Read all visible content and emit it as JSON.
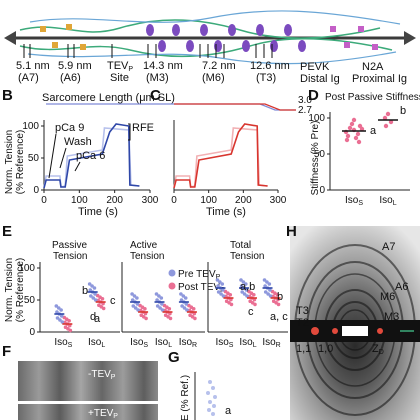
{
  "panel_letters": [
    "B",
    "C",
    "D",
    "E",
    "F",
    "G",
    "H"
  ],
  "panel_a": {
    "annotations": [
      {
        "main": "5.1 nm",
        "sub": "(A7)"
      },
      {
        "main": "5.9 nm",
        "sub": "(A6)"
      },
      {
        "main": "TEV",
        "sub_p": "P",
        "line2": "Site"
      },
      {
        "main": "14.3 nm",
        "sub": "(M3)"
      },
      {
        "main": "7.2 nm",
        "sub": "(M6)"
      },
      {
        "main": "12.6 nm",
        "sub": "(T3)"
      }
    ],
    "region_labels": [
      "PEVK",
      "Distal Ig",
      "N2A",
      "Proximal Ig"
    ]
  },
  "panel_b": {
    "title": "Sarcomere Length (μm SL)",
    "sl_ticks": [
      "3.0",
      "2.7"
    ],
    "ylabel_line1": "Norm. Tension",
    "ylabel_line2": "(% Reference)",
    "xlabel": "Time (s)",
    "y_ticks": [
      "100",
      "50",
      "0"
    ],
    "x_ticks": [
      "0",
      "100",
      "200",
      "300"
    ],
    "annotations": [
      "pCa 9",
      "Wash",
      "pCa 6",
      "RFE"
    ]
  },
  "panel_c": {
    "sl_ticks": [
      "3.0",
      "2.7"
    ],
    "xlabel": "Time (s)",
    "x_ticks": [
      "0",
      "100",
      "200",
      "300"
    ]
  },
  "panel_d": {
    "title": "Post Passive Stiffness",
    "ylabel": "Stiffness (% Pre)",
    "y_ticks": [
      "100",
      "50",
      "0"
    ],
    "x_ticks": [
      "Iso",
      "Iso"
    ],
    "x_subs": [
      "S",
      "L"
    ],
    "letters": [
      "a",
      "b"
    ]
  },
  "panel_e": {
    "ylabel_line1": "Norm. Tension",
    "ylabel_line2": "(% Reference)",
    "y_ticks": [
      "100",
      "50",
      "0"
    ],
    "subpanels": [
      {
        "title1": "Passive",
        "title2": "Tension",
        "x_ticks": [
          "Iso",
          "Iso"
        ],
        "x_subs": [
          "S",
          "L"
        ]
      },
      {
        "title1": "Active",
        "title2": "Tension",
        "x_ticks": [
          "Iso",
          "Iso",
          "Iso"
        ],
        "x_subs": [
          "S",
          "L",
          "R"
        ]
      },
      {
        "title1": "Total",
        "title2": "Tension",
        "x_ticks": [
          "Iso",
          "Iso",
          "Iso"
        ],
        "x_subs": [
          "S",
          "L",
          "R"
        ]
      }
    ],
    "legend": [
      {
        "main": "Pre TEV",
        "sub": "P",
        "color": "#8e98dc"
      },
      {
        "main": "Post TEV",
        "sub": "P",
        "color": "#ea6f93"
      }
    ],
    "letters_passive": [
      "a",
      "b",
      "c",
      "d"
    ],
    "letters_total": [
      "a,b",
      "b",
      "c",
      "a, c"
    ]
  },
  "panel_f": {
    "labels": [
      {
        "main": "-TEV",
        "sub": "P"
      },
      {
        "main": "+TEV",
        "sub": "P"
      }
    ]
  },
  "panel_g": {
    "ylabel": "E (% Ref.)",
    "letter": "a"
  },
  "panel_h": {
    "reflections": [
      "A7",
      "A6",
      "M6",
      "M3",
      "T3",
      "T2"
    ],
    "equatorial": [
      "1,1",
      "1,0",
      "Z"
    ],
    "z_sub": "D"
  },
  "colors": {
    "blue_dark": "#2f47a8",
    "blue_light": "#b7c1ec",
    "red_dark": "#d8352e",
    "red_light": "#f2b1b4",
    "pink": "#ea6f93",
    "lavender": "#8e98dc",
    "titin_green": "#3caa7a",
    "myosin_purple": "#7b4bbf"
  }
}
